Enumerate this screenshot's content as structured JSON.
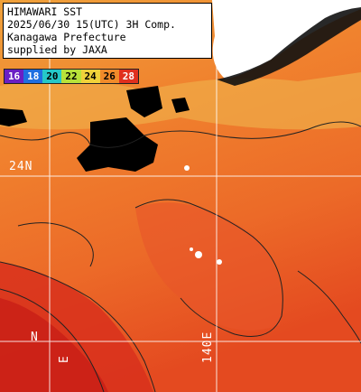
{
  "title_box": {
    "line1": "HIMAWARI SST",
    "line2": "2025/06/30 15(UTC) 3H Comp.",
    "line3": "Kanagawa Prefecture",
    "line4": "supplied by JAXA"
  },
  "legend": {
    "items": [
      {
        "label": "16",
        "color": "#6a1fc4"
      },
      {
        "label": "18",
        "color": "#1f6fe0"
      },
      {
        "label": "20",
        "color": "#25c8c8"
      },
      {
        "label": "22",
        "color": "#b8e23a"
      },
      {
        "label": "24",
        "color": "#f0d23a"
      },
      {
        "label": "26",
        "color": "#f08a2a"
      },
      {
        "label": "28",
        "color": "#e0301e"
      }
    ]
  },
  "grid_labels": {
    "lat_24n": "24N",
    "lat_lower": "N",
    "lon_left": "E",
    "lon_140e": "140E"
  },
  "colors": {
    "sea_warm": "#f07a30",
    "sea_hot": "#e03a1e",
    "sea_cool": "#f0a040",
    "cloud": "#000000",
    "land": "#ffffff",
    "grid": "#ffffff"
  }
}
